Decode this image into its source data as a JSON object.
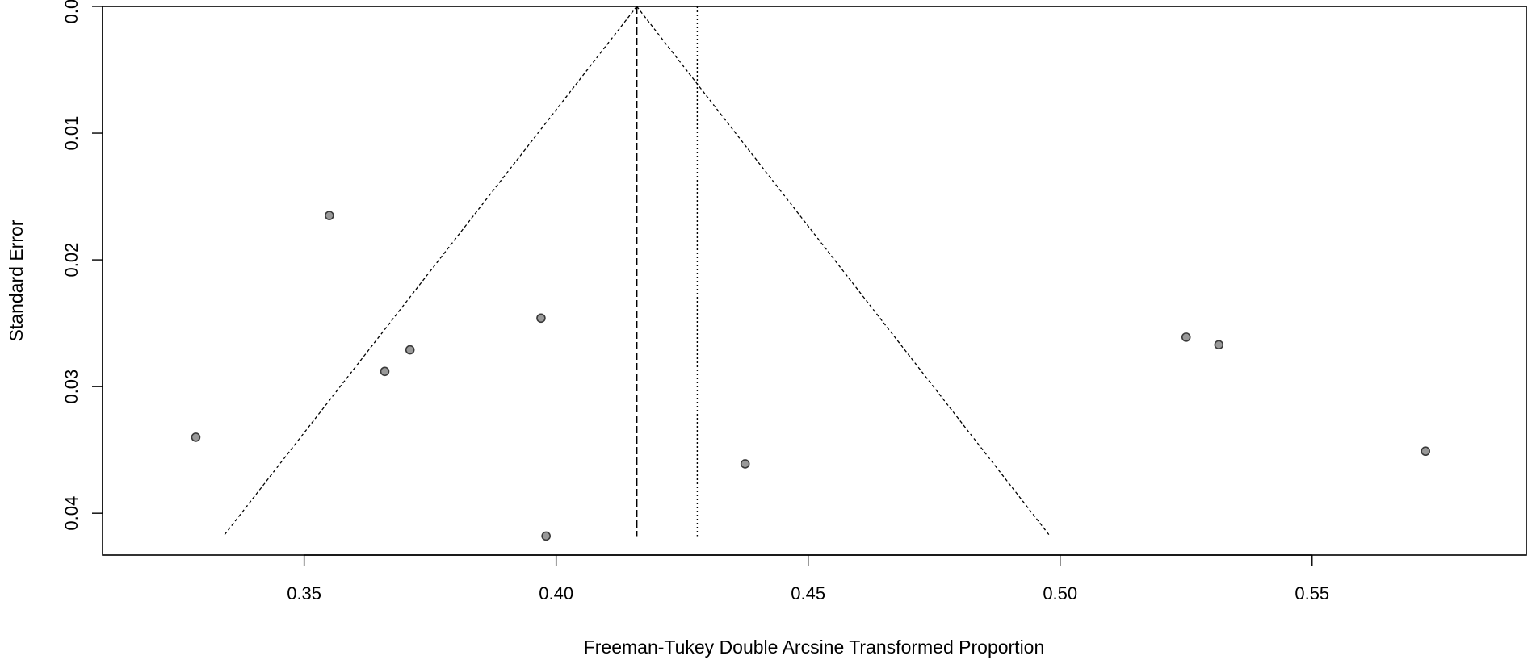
{
  "chart_data": {
    "type": "scatter",
    "title": "",
    "xlabel": "Freeman-Tukey Double Arcsine Transformed Proportion",
    "ylabel": "Standard Error",
    "xlim": [
      0.31,
      0.5925
    ],
    "ylim": [
      0.0,
      0.0433
    ],
    "y_reversed": true,
    "grid": false,
    "xticks": [
      0.35,
      0.4,
      0.45,
      0.5,
      0.55
    ],
    "xtick_labels": [
      "0.35",
      "0.40",
      "0.45",
      "0.50",
      "0.55"
    ],
    "yticks": [
      0.0,
      0.01,
      0.02,
      0.03,
      0.04
    ],
    "ytick_labels": [
      "0.00",
      "0.01",
      "0.02",
      "0.03",
      "0.04"
    ],
    "points": [
      {
        "x": 0.355,
        "y": 0.0165
      },
      {
        "x": 0.3285,
        "y": 0.034
      },
      {
        "x": 0.366,
        "y": 0.0288
      },
      {
        "x": 0.371,
        "y": 0.0271
      },
      {
        "x": 0.397,
        "y": 0.0246
      },
      {
        "x": 0.398,
        "y": 0.0418
      },
      {
        "x": 0.4375,
        "y": 0.0361
      },
      {
        "x": 0.525,
        "y": 0.0261
      },
      {
        "x": 0.5315,
        "y": 0.0267
      },
      {
        "x": 0.5725,
        "y": 0.0351
      }
    ],
    "pooled_estimate": 0.416,
    "reference_line": 0.428,
    "funnel": {
      "apex": {
        "x": 0.416,
        "y": 0.0
      },
      "left_base": {
        "x": 0.334,
        "y": 0.0418
      },
      "right_base": {
        "x": 0.498,
        "y": 0.0418
      }
    },
    "colors": {
      "point_fill": "#999999",
      "point_stroke": "#3a3a3a",
      "line": "#000000"
    }
  }
}
